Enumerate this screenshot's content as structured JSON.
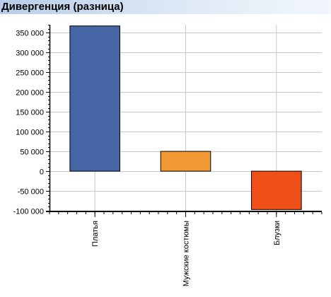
{
  "header": {
    "title": "Дивергенция (разница)"
  },
  "colors": {
    "title_bar_start": "#b7cde8",
    "title_bar_end": "#f3f7fc",
    "grid": "#c8c8c8",
    "bar_outline": "#000000"
  },
  "chart_data": {
    "type": "bar",
    "title": "Дивергенция (разница)",
    "xlabel": "",
    "ylabel": "",
    "categories": [
      "Платья",
      "Мужские костюмы",
      "Блузки"
    ],
    "values": [
      367000,
      50000,
      -97000
    ],
    "bar_colors": [
      "#4565a4",
      "#f39a35",
      "#f04f17"
    ],
    "ylim": [
      -100000,
      370000
    ],
    "yticks": [
      -100000,
      -50000,
      0,
      50000,
      100000,
      150000,
      200000,
      250000,
      300000,
      350000
    ],
    "ytick_labels": [
      "-100 000",
      "-50 000",
      "0",
      "50 000",
      "100 000",
      "150 000",
      "200 000",
      "250 000",
      "300 000",
      "350 000"
    ],
    "grid": true,
    "legend": "none"
  }
}
